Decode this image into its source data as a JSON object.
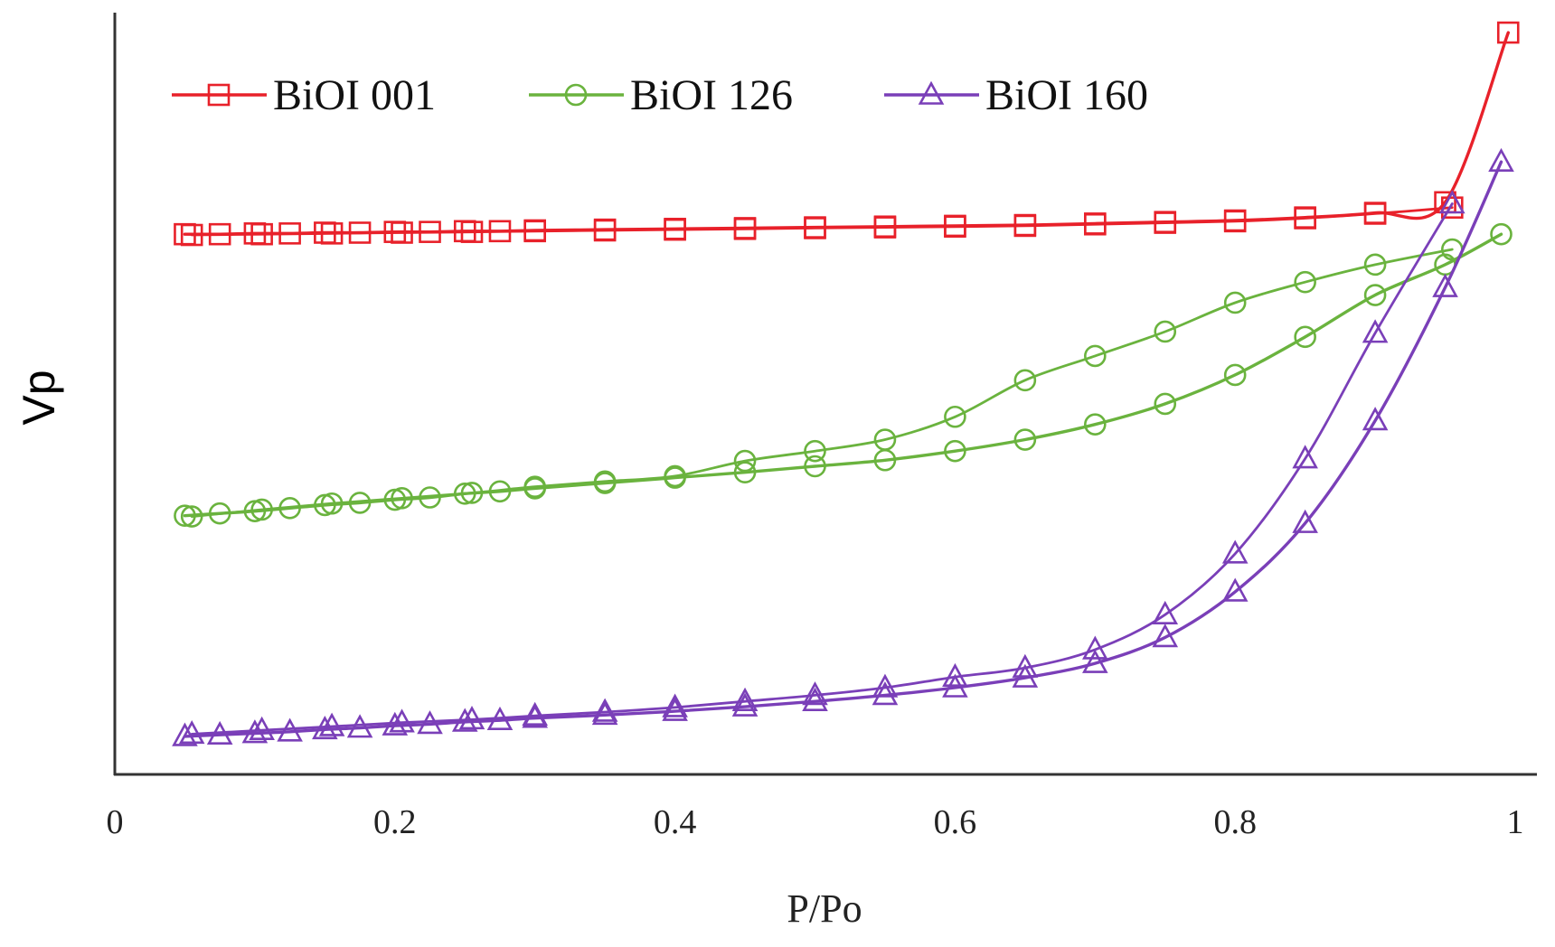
{
  "chart_data": {
    "type": "line",
    "title": "",
    "xlabel": "P/Po",
    "ylabel": "Vp",
    "xlim": [
      0,
      1
    ],
    "ylim": [
      0,
      1
    ],
    "xticks": [
      "0",
      "0.2",
      "0.4",
      "0.6",
      "0.8",
      "1"
    ],
    "grid": false,
    "legend_position": "top-left",
    "series": [
      {
        "name": "BiOI 001",
        "color": "#e8212a",
        "marker": "square",
        "adsorption": {
          "x": [
            0.05,
            0.075,
            0.1,
            0.125,
            0.15,
            0.175,
            0.2,
            0.225,
            0.25,
            0.275,
            0.3,
            0.35,
            0.4,
            0.45,
            0.5,
            0.55,
            0.6,
            0.65,
            0.7,
            0.75,
            0.8,
            0.85,
            0.9,
            0.95,
            0.995
          ],
          "y": [
            0.71,
            0.71,
            0.711,
            0.711,
            0.712,
            0.712,
            0.713,
            0.713,
            0.714,
            0.714,
            0.715,
            0.716,
            0.717,
            0.718,
            0.719,
            0.72,
            0.721,
            0.722,
            0.724,
            0.726,
            0.728,
            0.732,
            0.738,
            0.752,
            0.975
          ]
        },
        "desorption": {
          "x": [
            0.955,
            0.9,
            0.85,
            0.8,
            0.75,
            0.7,
            0.65,
            0.6,
            0.55,
            0.5,
            0.45,
            0.4,
            0.35,
            0.3,
            0.255,
            0.205,
            0.155,
            0.105,
            0.055
          ],
          "y": [
            0.745,
            0.737,
            0.731,
            0.727,
            0.725,
            0.723,
            0.721,
            0.72,
            0.719,
            0.718,
            0.717,
            0.716,
            0.715,
            0.714,
            0.713,
            0.712,
            0.711,
            0.71,
            0.709
          ]
        }
      },
      {
        "name": "BiOI 126",
        "color": "#6ab33e",
        "marker": "circle",
        "adsorption": {
          "x": [
            0.05,
            0.075,
            0.1,
            0.125,
            0.15,
            0.175,
            0.2,
            0.225,
            0.25,
            0.275,
            0.3,
            0.35,
            0.4,
            0.45,
            0.5,
            0.55,
            0.6,
            0.65,
            0.7,
            0.75,
            0.8,
            0.85,
            0.9,
            0.95,
            0.99
          ],
          "y": [
            0.34,
            0.343,
            0.346,
            0.35,
            0.354,
            0.357,
            0.361,
            0.364,
            0.369,
            0.372,
            0.376,
            0.383,
            0.39,
            0.397,
            0.405,
            0.413,
            0.425,
            0.44,
            0.46,
            0.487,
            0.525,
            0.575,
            0.63,
            0.67,
            0.71
          ]
        },
        "desorption": {
          "x": [
            0.955,
            0.9,
            0.85,
            0.8,
            0.75,
            0.7,
            0.65,
            0.6,
            0.55,
            0.5,
            0.45,
            0.4,
            0.35,
            0.3,
            0.255,
            0.205,
            0.155,
            0.105,
            0.055
          ],
          "y": [
            0.69,
            0.67,
            0.647,
            0.62,
            0.582,
            0.55,
            0.518,
            0.47,
            0.44,
            0.425,
            0.412,
            0.392,
            0.385,
            0.378,
            0.37,
            0.363,
            0.356,
            0.348,
            0.339
          ]
        }
      },
      {
        "name": "BiOI 160",
        "color": "#7a3fb8",
        "marker": "triangle",
        "adsorption": {
          "x": [
            0.05,
            0.075,
            0.1,
            0.125,
            0.15,
            0.175,
            0.2,
            0.225,
            0.25,
            0.275,
            0.3,
            0.35,
            0.4,
            0.45,
            0.5,
            0.55,
            0.6,
            0.65,
            0.7,
            0.75,
            0.8,
            0.85,
            0.9,
            0.95,
            0.99
          ],
          "y": [
            0.05,
            0.052,
            0.054,
            0.056,
            0.059,
            0.061,
            0.064,
            0.066,
            0.069,
            0.071,
            0.074,
            0.078,
            0.083,
            0.089,
            0.096,
            0.104,
            0.114,
            0.127,
            0.146,
            0.18,
            0.24,
            0.33,
            0.465,
            0.64,
            0.805
          ]
        },
        "desorption": {
          "x": [
            0.955,
            0.9,
            0.85,
            0.8,
            0.75,
            0.7,
            0.65,
            0.6,
            0.55,
            0.5,
            0.45,
            0.4,
            0.35,
            0.3,
            0.255,
            0.205,
            0.155,
            0.105,
            0.055
          ],
          "y": [
            0.75,
            0.58,
            0.415,
            0.29,
            0.21,
            0.164,
            0.14,
            0.128,
            0.114,
            0.104,
            0.096,
            0.088,
            0.082,
            0.077,
            0.072,
            0.068,
            0.063,
            0.058,
            0.053
          ]
        }
      }
    ]
  }
}
